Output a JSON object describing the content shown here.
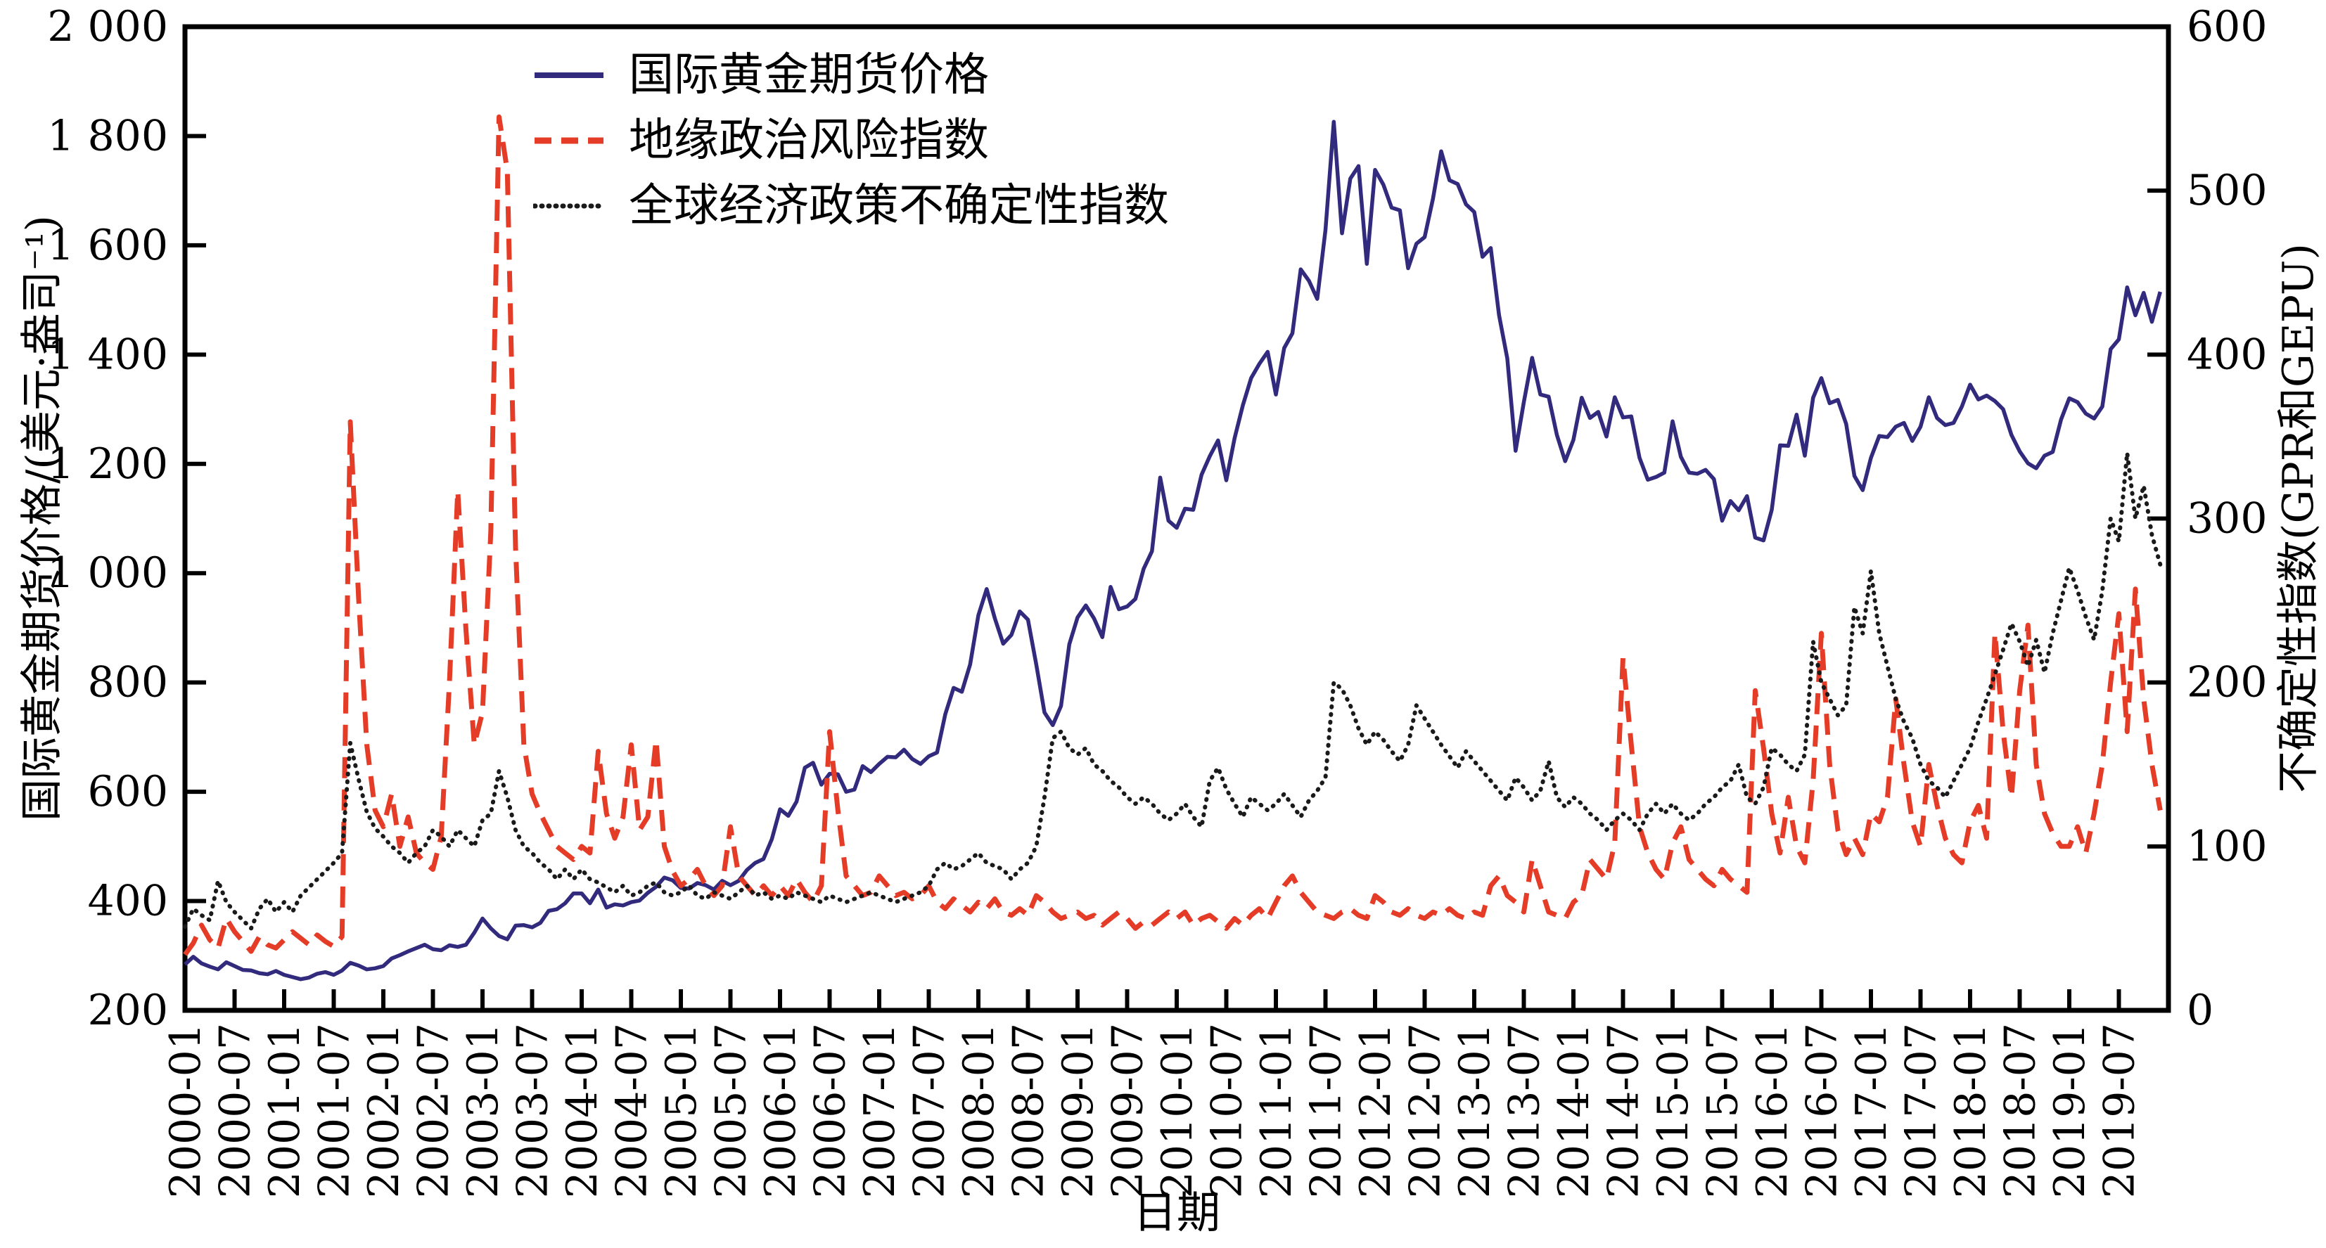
{
  "figure": {
    "xlabel": "日期",
    "left_axis_title": "国际黄金期货价格/(美元·盎司⁻¹)",
    "right_axis_title": "不确定性指数(GPR和GEPU)"
  },
  "chart_data": {
    "type": "line",
    "x_start": "2000-01",
    "x_end": "2019-12",
    "x_months": 240,
    "x_tick_step_months": 6,
    "grid": false,
    "legend_position": "upper-left-inside",
    "xlabel": "日期",
    "x_tick_labels": [
      "2000-01",
      "2000-07",
      "2001-01",
      "2001-07",
      "2002-01",
      "2002-07",
      "2003-01",
      "2003-07",
      "2004-01",
      "2004-07",
      "2005-01",
      "2005-07",
      "2006-01",
      "2006-07",
      "2007-01",
      "2007-07",
      "2008-01",
      "2008-07",
      "2009-01",
      "2009-07",
      "2010-01",
      "2010-07",
      "2011-01",
      "2011-07",
      "2012-01",
      "2012-07",
      "2013-01",
      "2013-07",
      "2014-01",
      "2014-07",
      "2015-01",
      "2015-07",
      "2016-01",
      "2016-07",
      "2017-01",
      "2017-07",
      "2018-01",
      "2018-07",
      "2019-01",
      "2019-07"
    ],
    "left_axis": {
      "label": "国际黄金期货价格/(美元·盎司⁻¹)",
      "min": 200,
      "max": 2000,
      "tick_values": [
        200,
        400,
        600,
        800,
        1000,
        1200,
        1400,
        1600,
        1800,
        2000
      ],
      "tick_labels": [
        "200",
        "400",
        "600",
        "800",
        "1 000",
        "1 200",
        "1 400",
        "1 600",
        "1 800",
        "2 000"
      ]
    },
    "right_axis": {
      "label": "不确定性指数(GPR和GEPU)",
      "min": 0,
      "max": 600,
      "tick_values": [
        0,
        100,
        200,
        300,
        400,
        500,
        600
      ],
      "tick_labels": [
        "0",
        "100",
        "200",
        "300",
        "400",
        "500",
        "600"
      ]
    },
    "series": [
      {
        "name": "国际黄金期货价格",
        "axis": "left",
        "color": "#322A7C",
        "style": "solid",
        "values": [
          284,
          298,
          286,
          280,
          275,
          288,
          281,
          274,
          273,
          268,
          266,
          272,
          265,
          261,
          257,
          260,
          267,
          270,
          265,
          273,
          287,
          282,
          275,
          277,
          281,
          295,
          301,
          308,
          314,
          320,
          312,
          310,
          319,
          316,
          320,
          342,
          368,
          350,
          336,
          330,
          355,
          356,
          352,
          360,
          382,
          385,
          396,
          414,
          414,
          396,
          421,
          388,
          394,
          392,
          398,
          401,
          415,
          426,
          443,
          438,
          424,
          423,
          433,
          429,
          421,
          437,
          429,
          437,
          457,
          470,
          477,
          513,
          568,
          556,
          582,
          644,
          653,
          613,
          633,
          632,
          600,
          604,
          647,
          636,
          651,
          664,
          663,
          677,
          660,
          651,
          665,
          672,
          742,
          790,
          783,
          833,
          923,
          971,
          917,
          871,
          887,
          930,
          915,
          833,
          745,
          722,
          757,
          870,
          919,
          941,
          917,
          883,
          975,
          934,
          939,
          953,
          1008,
          1040,
          1175,
          1096,
          1083,
          1118,
          1116,
          1180,
          1214,
          1243,
          1170,
          1247,
          1307,
          1357,
          1383,
          1405,
          1327,
          1412,
          1439,
          1556,
          1535,
          1502,
          1628,
          1826,
          1622,
          1722,
          1745,
          1566,
          1738,
          1711,
          1669,
          1664,
          1558,
          1603,
          1615,
          1685,
          1772,
          1719,
          1712,
          1675,
          1661,
          1579,
          1595,
          1472,
          1393,
          1224,
          1313,
          1394,
          1327,
          1323,
          1253,
          1205,
          1244,
          1321,
          1284,
          1295,
          1250,
          1322,
          1285,
          1287,
          1211,
          1171,
          1176,
          1184,
          1278,
          1213,
          1184,
          1182,
          1189,
          1172,
          1096,
          1132,
          1115,
          1141,
          1065,
          1060,
          1116,
          1234,
          1233,
          1290,
          1215,
          1321,
          1357,
          1311,
          1317,
          1273,
          1178,
          1152,
          1211,
          1251,
          1249,
          1268,
          1275,
          1242,
          1268,
          1322,
          1284,
          1271,
          1275,
          1305,
          1345,
          1318,
          1325,
          1315,
          1300,
          1253,
          1223,
          1201,
          1192,
          1215,
          1222,
          1281,
          1320,
          1313,
          1292,
          1283,
          1305,
          1410,
          1428,
          1523,
          1472,
          1513,
          1460,
          1515
        ]
      },
      {
        "name": "地缘政治风险指数",
        "axis": "right",
        "color": "#E53C28",
        "style": "dashed",
        "values": [
          34,
          41,
          52,
          43,
          38,
          56,
          48,
          42,
          36,
          45,
          40,
          38,
          43,
          48,
          44,
          40,
          46,
          42,
          39,
          45,
          359,
          252,
          162,
          122,
          112,
          132,
          100,
          118,
          96,
          90,
          86,
          106,
          200,
          317,
          232,
          162,
          182,
          292,
          545,
          512,
          282,
          162,
          132,
          120,
          110,
          100,
          96,
          92,
          100,
          96,
          158,
          120,
          105,
          118,
          162,
          110,
          118,
          165,
          100,
          85,
          76,
          80,
          86,
          76,
          70,
          76,
          112,
          82,
          76,
          70,
          76,
          70,
          76,
          70,
          80,
          72,
          66,
          76,
          170,
          122,
          82,
          76,
          70,
          72,
          82,
          76,
          70,
          72,
          68,
          70,
          76,
          66,
          62,
          68,
          64,
          60,
          66,
          62,
          68,
          60,
          58,
          62,
          58,
          70,
          66,
          60,
          56,
          58,
          60,
          56,
          58,
          52,
          56,
          60,
          56,
          50,
          54,
          52,
          56,
          60,
          56,
          60,
          52,
          56,
          58,
          54,
          50,
          56,
          52,
          58,
          62,
          56,
          66,
          76,
          82,
          72,
          66,
          60,
          58,
          56,
          60,
          62,
          58,
          56,
          70,
          66,
          60,
          58,
          62,
          58,
          56,
          60,
          58,
          62,
          58,
          56,
          60,
          58,
          76,
          82,
          70,
          66,
          60,
          92,
          76,
          60,
          58,
          56,
          66,
          70,
          92,
          86,
          80,
          102,
          215,
          162,
          112,
          96,
          86,
          80,
          102,
          112,
          92,
          86,
          80,
          76,
          86,
          80,
          76,
          72,
          195,
          160,
          120,
          96,
          130,
          100,
          90,
          140,
          230,
          150,
          110,
          95,
          105,
          95,
          120,
          115,
          130,
          190,
          150,
          115,
          100,
          150,
          125,
          105,
          95,
          90,
          115,
          125,
          105,
          230,
          170,
          130,
          195,
          235,
          150,
          120,
          108,
          100,
          100,
          112,
          96,
          120,
          150,
          200,
          242,
          170,
          257,
          190,
          150,
          122
        ]
      },
      {
        "name": "全球经济政策不确定性指数",
        "axis": "right",
        "color": "#1A1A1A",
        "style": "dotted",
        "values": [
          51,
          62,
          58,
          55,
          79,
          66,
          60,
          55,
          50,
          62,
          68,
          60,
          66,
          60,
          70,
          75,
          80,
          85,
          90,
          96,
          163,
          141,
          121,
          111,
          106,
          100,
          96,
          90,
          96,
          100,
          110,
          106,
          100,
          110,
          105,
          100,
          116,
          120,
          146,
          130,
          110,
          100,
          96,
          90,
          86,
          80,
          86,
          80,
          86,
          80,
          78,
          75,
          72,
          76,
          70,
          72,
          76,
          78,
          72,
          70,
          72,
          76,
          70,
          68,
          72,
          70,
          68,
          72,
          76,
          70,
          72,
          68,
          70,
          68,
          72,
          70,
          68,
          66,
          70,
          68,
          66,
          68,
          70,
          72,
          70,
          68,
          66,
          68,
          70,
          72,
          76,
          86,
          90,
          86,
          88,
          92,
          96,
          90,
          88,
          86,
          80,
          86,
          90,
          100,
          130,
          166,
          170,
          160,
          156,
          160,
          150,
          146,
          140,
          136,
          130,
          126,
          130,
          126,
          120,
          116,
          120,
          126,
          118,
          112,
          140,
          148,
          135,
          126,
          118,
          130,
          126,
          122,
          126,
          132,
          125,
          118,
          128,
          134,
          142,
          200,
          196,
          186,
          172,
          162,
          170,
          165,
          158,
          152,
          162,
          186,
          178,
          170,
          162,
          155,
          148,
          158,
          152,
          146,
          140,
          134,
          128,
          142,
          136,
          128,
          134,
          152,
          130,
          124,
          130,
          126,
          120,
          116,
          110,
          116,
          120,
          116,
          110,
          120,
          126,
          120,
          126,
          120,
          116,
          120,
          126,
          130,
          136,
          140,
          150,
          130,
          126,
          136,
          160,
          156,
          150,
          146,
          156,
          225,
          200,
          190,
          180,
          186,
          246,
          230,
          268,
          230,
          210,
          190,
          176,
          166,
          150,
          140,
          136,
          130,
          140,
          150,
          160,
          176,
          190,
          205,
          220,
          236,
          225,
          210,
          226,
          206,
          230,
          250,
          270,
          256,
          240,
          226,
          256,
          300,
          286,
          340,
          300,
          320,
          290,
          272
        ]
      }
    ]
  }
}
